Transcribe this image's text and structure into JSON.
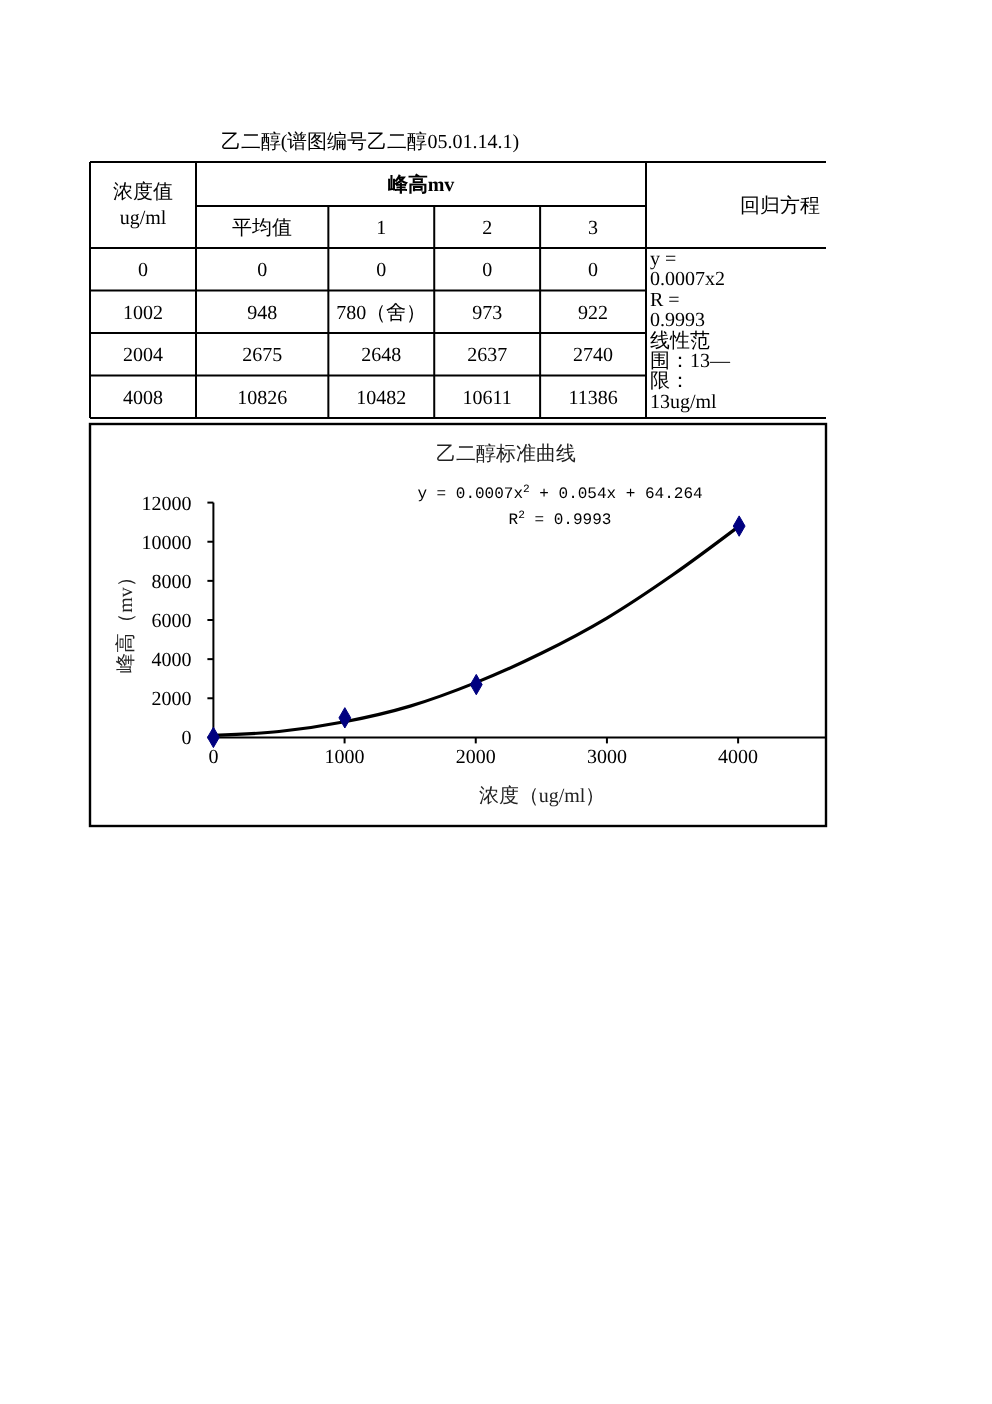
{
  "chart_data": [
    {
      "type": "other",
      "title": "乙二醇(谱图编号乙二醇05.01.14.1)",
      "annotations": [
        "浓度值ug/ml",
        "峰高mv",
        "回归方程",
        "平均值",
        "1",
        "2",
        "3",
        "0",
        "0",
        "0",
        "0",
        "0",
        "1002",
        "948",
        "780（舍）",
        "973",
        "922",
        "2004",
        "2675",
        "2648",
        "2637",
        "2740",
        "4008",
        "10826",
        "10482",
        "10611",
        "11386",
        "y =",
        "0.0007x2",
        "R =",
        "0.9993",
        "线性范",
        "围：13—",
        "限：",
        "13ug/ml"
      ]
    },
    {
      "type": "scatter",
      "title": "乙二醇标准曲线",
      "xlabel": "浓度（ug/ml）",
      "ylabel": "峰高（mv）",
      "xlim": [
        0,
        4670
      ],
      "xticks": [
        0,
        1000,
        2000,
        3000,
        4000
      ],
      "ylim": [
        0,
        12000
      ],
      "yticks": [
        0,
        2000,
        4000,
        6000,
        8000,
        10000,
        12000
      ],
      "series": [
        {
          "type": "scatter",
          "color": "#000080",
          "marker": "diamond",
          "x": [
            0,
            1002,
            2004,
            4008
          ],
          "values": [
            0,
            1000,
            2700,
            10800
          ]
        },
        {
          "type": "line",
          "color": "#000000",
          "marker": "none",
          "x": [
            0,
            500,
            1000,
            1500,
            2000,
            2500,
            3000,
            3500,
            4008
          ],
          "values": [
            100,
            300,
            800,
            1600,
            2800,
            4300,
            6100,
            8300,
            10800
          ]
        }
      ],
      "annotations": [
        "y = 0.0007x$^{2}$ + 0.054x + 64.264",
        "R$^{2}$ = 0.9993"
      ]
    }
  ]
}
